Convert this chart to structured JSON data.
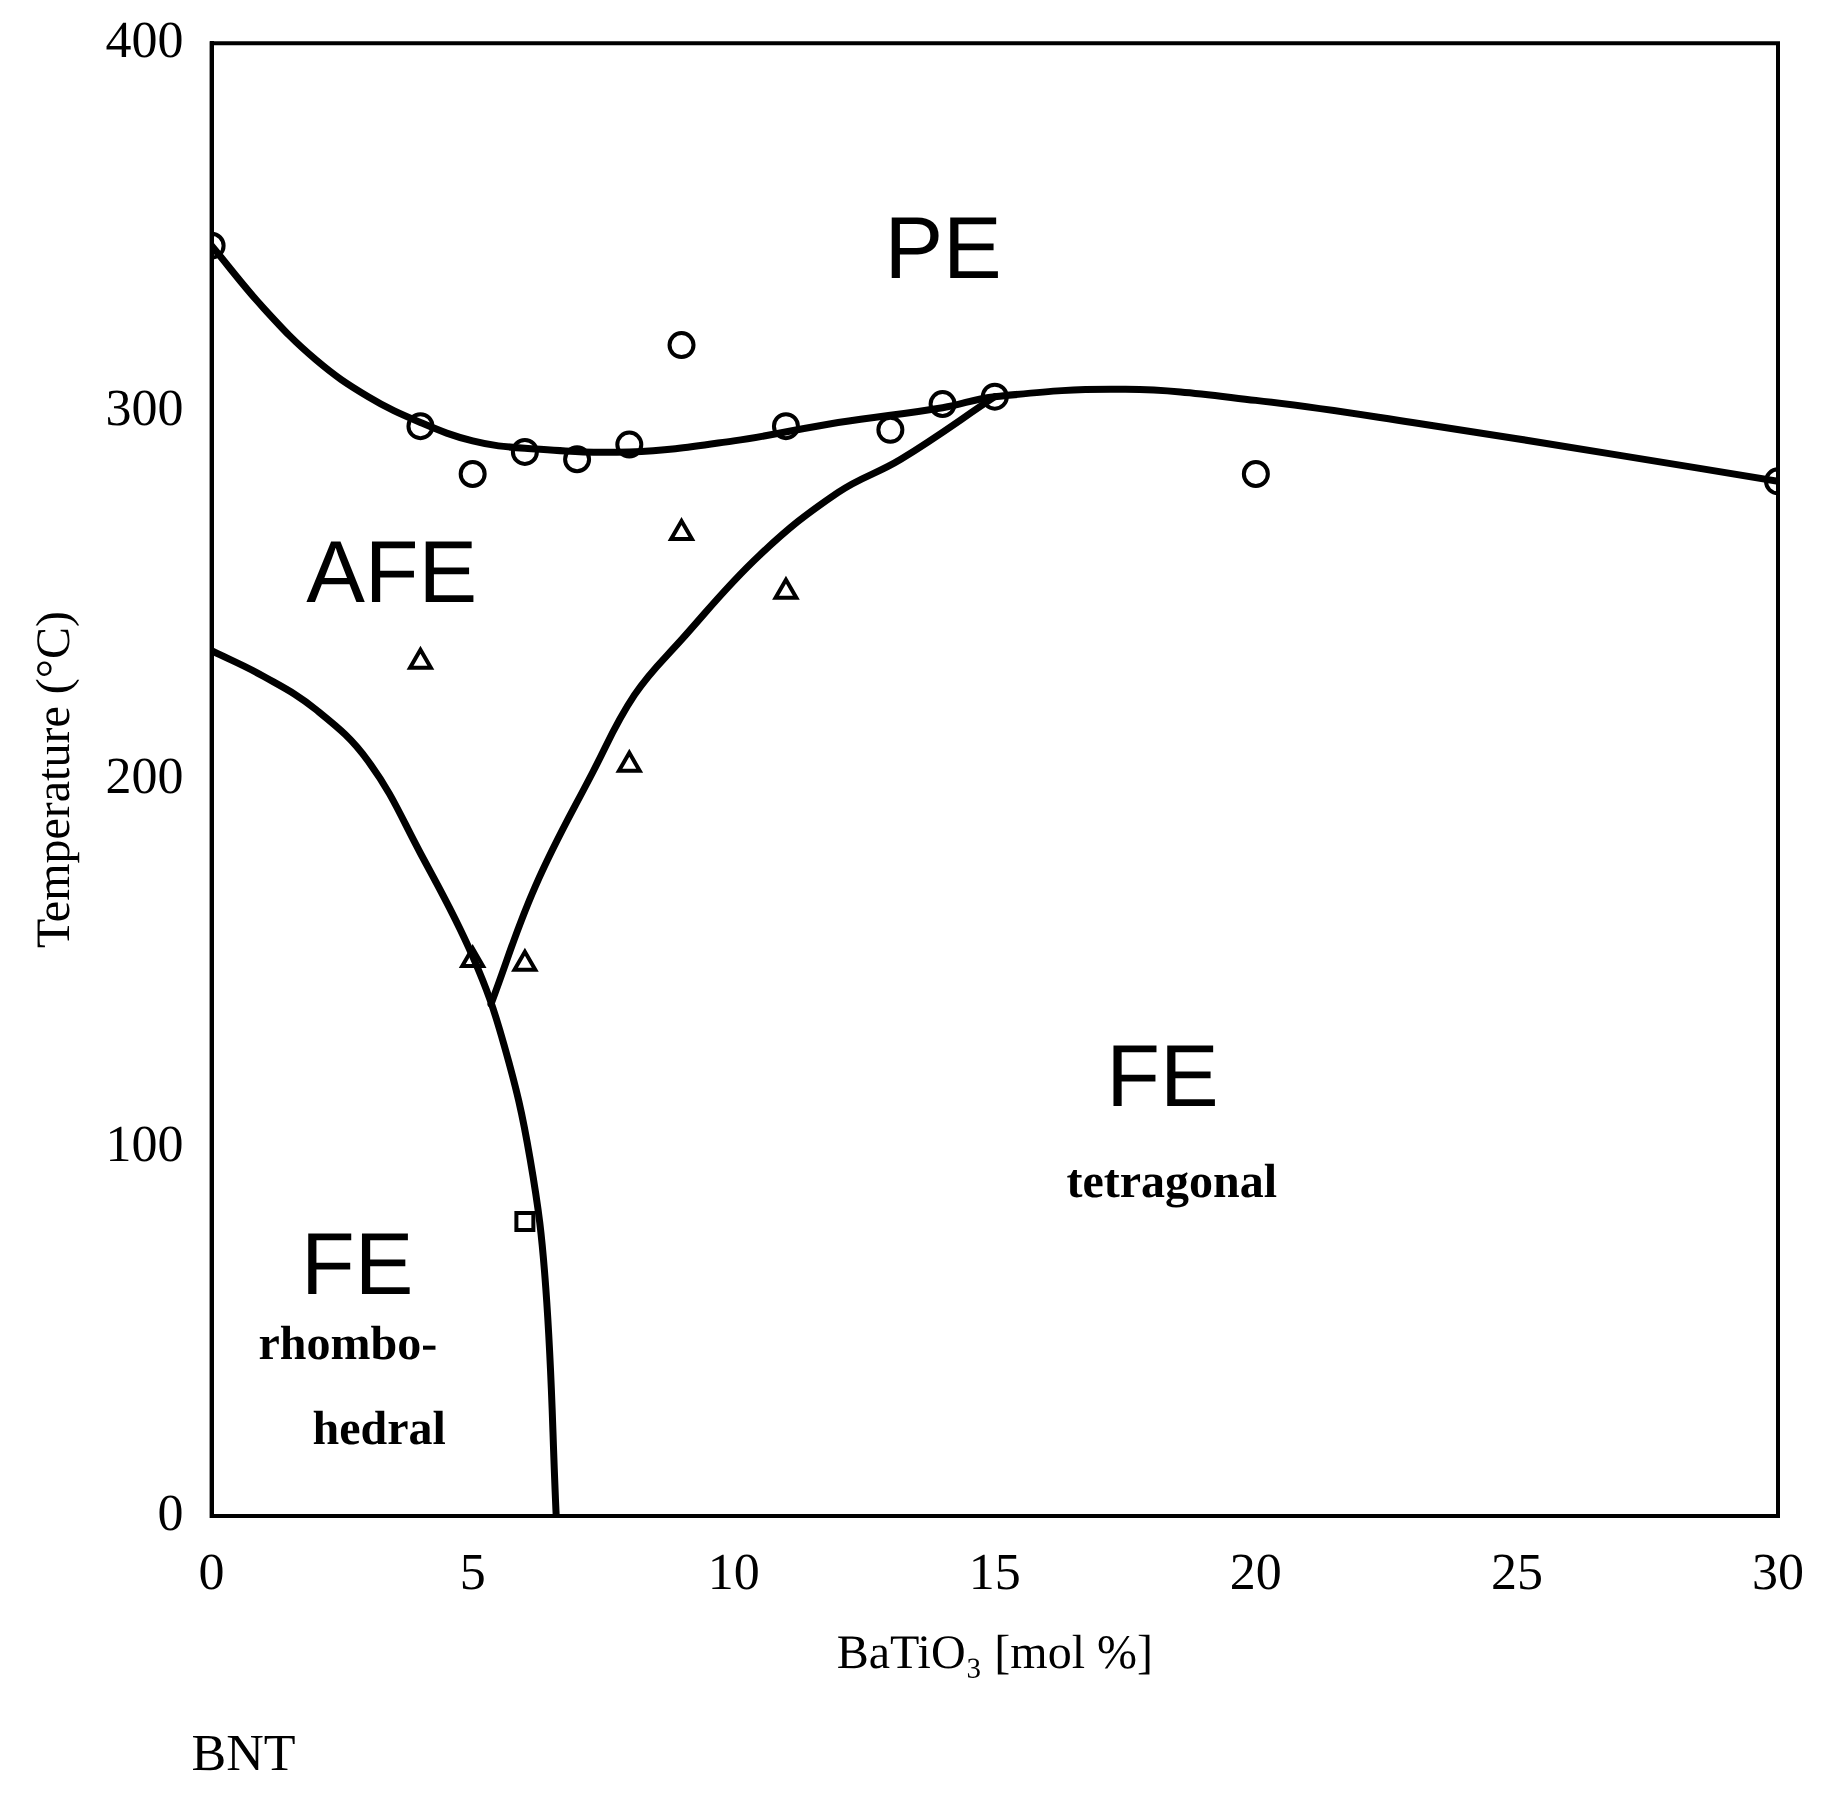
{
  "chart_data": {
    "type": "scatter",
    "xlabel": "BaTiO₃ [mol %]",
    "ylabel": "Temperature (°C)",
    "xlim": [
      0,
      30
    ],
    "xticks": [
      0,
      5,
      10,
      15,
      20,
      25,
      30
    ],
    "ylim": [
      0,
      400
    ],
    "yticks": [
      0,
      100,
      200,
      300,
      400
    ],
    "grid": false,
    "legend": false,
    "series": [
      {
        "type": "scatter",
        "marker": "circle",
        "color": "#000000",
        "x": [
          0,
          4,
          5,
          6,
          7,
          8,
          9,
          11,
          13,
          14,
          15,
          20,
          30
        ],
        "values": [
          345,
          296,
          283,
          289,
          287,
          291,
          318,
          296,
          295,
          302,
          304,
          283,
          281
        ]
      },
      {
        "type": "scatter",
        "marker": "triangle",
        "color": "#000000",
        "x": [
          4,
          5,
          6,
          8,
          9,
          11
        ],
        "values": [
          232,
          151,
          150,
          204,
          267,
          251
        ]
      },
      {
        "type": "scatter",
        "marker": "square",
        "color": "#000000",
        "x": [
          6
        ],
        "values": [
          80
        ]
      },
      {
        "type": "line",
        "marker": "none",
        "color": "#000000",
        "x": [
          0,
          1,
          2,
          3,
          4,
          5,
          6,
          8,
          10,
          12,
          14,
          15,
          17.5,
          20,
          23,
          27,
          30
        ],
        "values": [
          345,
          328,
          314,
          304,
          297,
          292,
          290,
          289,
          292,
          297,
          301,
          304,
          306,
          303,
          297,
          288,
          281
        ]
      },
      {
        "type": "line",
        "marker": "none",
        "color": "#000000",
        "x": [
          0,
          1,
          2,
          3,
          4,
          5,
          5.6,
          6.1,
          6.4,
          6.6
        ],
        "values": [
          235,
          228,
          219,
          205,
          180,
          152,
          128,
          97,
          62,
          0
        ]
      },
      {
        "type": "line",
        "marker": "none",
        "color": "#000000",
        "x": [
          5.35,
          6.2,
          7.3,
          8.1,
          9,
          10.5,
          12,
          13.2,
          15
        ],
        "values": [
          139,
          171,
          202,
          223,
          238,
          261,
          278,
          287,
          304
        ]
      }
    ],
    "annotations": [
      "PE",
      "AFE",
      "FE",
      "tetragonal",
      "FE",
      "rhombo-",
      "hedral",
      "BNT"
    ]
  }
}
